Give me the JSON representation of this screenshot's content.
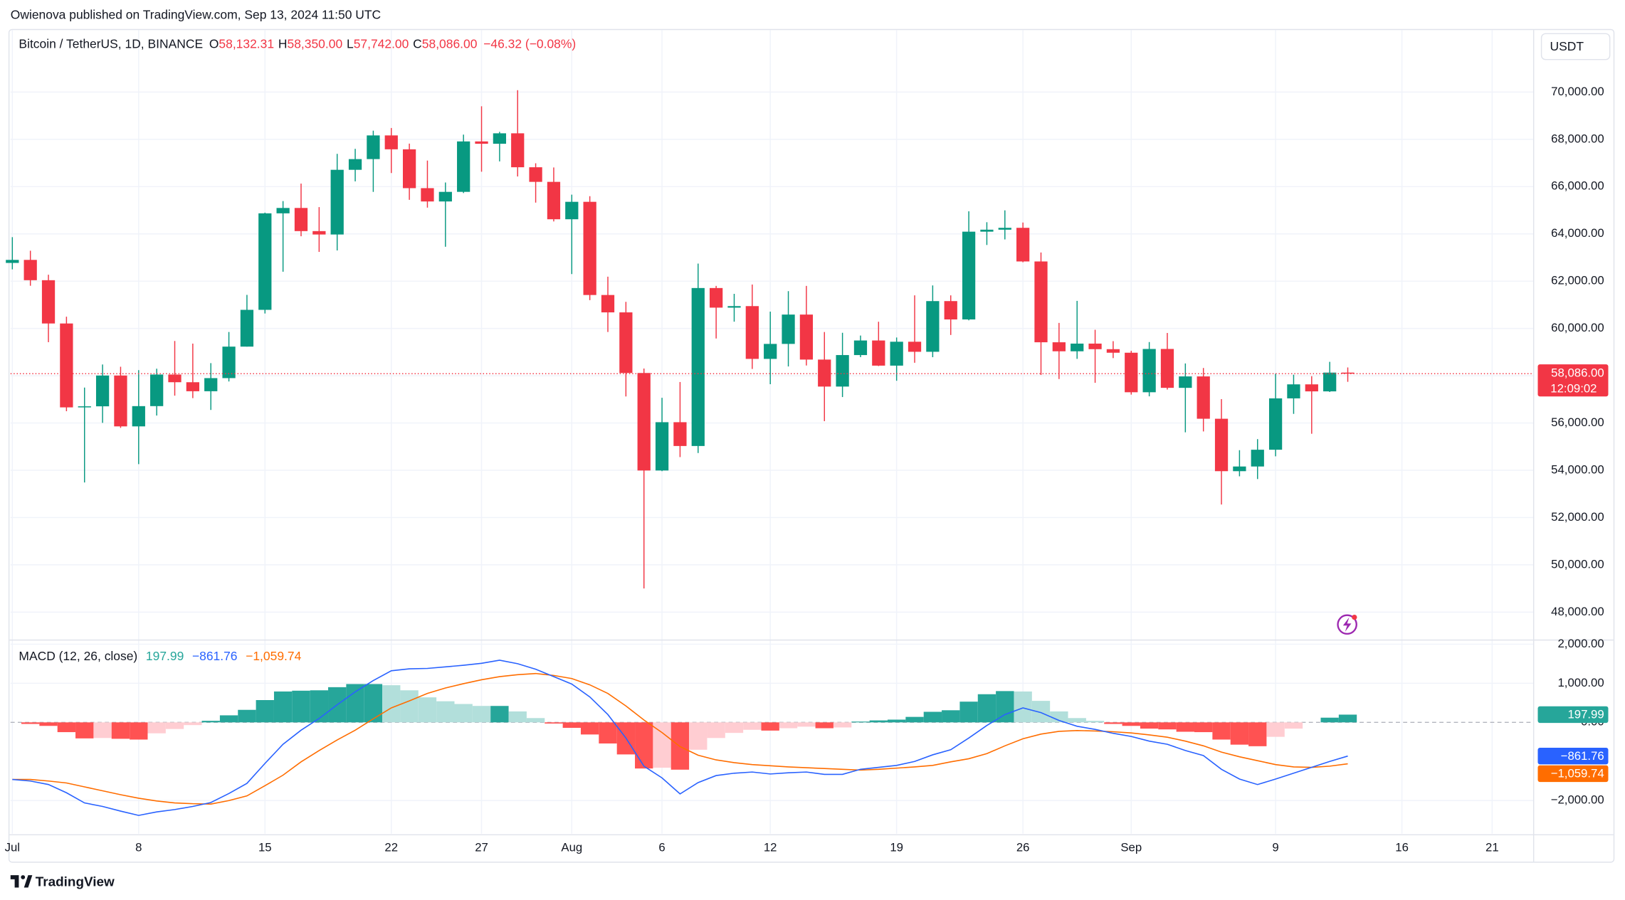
{
  "header": {
    "byline": "Owienova published on TradingView.com, Sep 13, 2024 11:50 UTC",
    "currency": "USDT",
    "brand": "TradingView"
  },
  "chart_data": [
    {
      "type": "candlestick",
      "title": "Bitcoin / TetherUS, 1D, BINANCE",
      "legend": [
        {
          "key": "O",
          "text": "58,132.31"
        },
        {
          "key": "H",
          "text": "58,350.00"
        },
        {
          "key": "L",
          "text": "57,742.00"
        },
        {
          "key": "C",
          "text": "58,086.00"
        }
      ],
      "change": "−46.32 (−0.08%)",
      "open": [
        62772,
        62900,
        62041,
        60210,
        56661,
        56706,
        58009,
        55857,
        56714,
        58050,
        57725,
        57344,
        57899,
        59231,
        60787,
        64870,
        65097,
        64118,
        63974,
        66711,
        67164,
        68166,
        67578,
        65935,
        65372,
        65778,
        67912,
        67813,
        68255,
        66819,
        66201,
        64619,
        65357,
        61415,
        60680,
        58116,
        53991,
        56034,
        55027,
        61710,
        60880,
        60945,
        58712,
        59346,
        60587,
        58683,
        57541,
        58874,
        59491,
        58427,
        59438,
        59013,
        61157,
        60381,
        64094,
        64178,
        64257,
        62834,
        59415,
        59034,
        59359,
        59123,
        58973,
        57301,
        59132,
        57487,
        57970,
        56180,
        53962,
        54160,
        54869,
        57042,
        57635,
        57338,
        58132.31
      ],
      "high": [
        63862,
        63288,
        62273,
        60498,
        57498,
        58475,
        58380,
        58236,
        58297,
        59470,
        59359,
        58533,
        59850,
        61420,
        64900,
        65388,
        66128,
        65133,
        67386,
        67598,
        68367,
        68480,
        67819,
        67102,
        66175,
        68200,
        69399,
        68318,
        70079,
        66987,
        66810,
        65660,
        65596,
        62190,
        61124,
        58305,
        57066,
        57734,
        62745,
        61800,
        61464,
        61858,
        60711,
        61578,
        61800,
        59849,
        59817,
        59700,
        60284,
        59617,
        61400,
        61820,
        61400,
        64955,
        64494,
        64996,
        64481,
        63212,
        60234,
        61166,
        59944,
        59462,
        59054,
        59425,
        59809,
        58519,
        58327,
        57008,
        54850,
        55318,
        58088,
        58044,
        57981,
        58588,
        58350
      ],
      "low": [
        62500,
        61806,
        59419,
        56500,
        53485,
        56006,
        55794,
        54260,
        56316,
        57157,
        57052,
        56552,
        57757,
        59230,
        60633,
        62400,
        63900,
        63238,
        63300,
        66222,
        65777,
        66574,
        65441,
        65111,
        63456,
        65728,
        66630,
        67067,
        66429,
        65323,
        64527,
        62300,
        61198,
        59850,
        57122,
        49000,
        53963,
        54558,
        54730,
        59575,
        60287,
        58286,
        57642,
        58392,
        58433,
        56078,
        57098,
        58785,
        58408,
        57787,
        58548,
        58784,
        59724,
        60345,
        63531,
        63766,
        62800,
        58034,
        57860,
        58713,
        57700,
        58745,
        57201,
        57128,
        57415,
        55606,
        55643,
        52550,
        53745,
        53629,
        54591,
        56386,
        55545,
        57311,
        57742
      ],
      "close": [
        62900,
        62041,
        60210,
        56661,
        56706,
        58009,
        55857,
        56714,
        58050,
        57725,
        57344,
        57899,
        59231,
        60787,
        64870,
        65097,
        64118,
        63974,
        66711,
        67164,
        68166,
        67578,
        65935,
        65372,
        65778,
        67912,
        67813,
        68255,
        66819,
        66201,
        64619,
        65357,
        61415,
        60680,
        58116,
        53991,
        56034,
        55027,
        61710,
        60880,
        60945,
        58712,
        59346,
        60587,
        58683,
        57541,
        58874,
        59491,
        58427,
        59438,
        59013,
        61157,
        60381,
        64094,
        64178,
        64257,
        62834,
        59415,
        59034,
        59359,
        59123,
        58973,
        57301,
        59132,
        57487,
        57970,
        56180,
        53962,
        54160,
        54869,
        57042,
        57635,
        57338,
        58132,
        58086
      ],
      "last_price_label": "58,086.00",
      "countdown": "12:09:02",
      "up_color": "#089981",
      "down_color": "#f23645",
      "xlim": [
        -0.1,
        84.3
      ],
      "xticks": [
        {
          "value": 0,
          "label": "Jul"
        },
        {
          "value": 7,
          "label": "8"
        },
        {
          "value": 14,
          "label": "15"
        },
        {
          "value": 21,
          "label": "22"
        },
        {
          "value": 26,
          "label": "27"
        },
        {
          "value": 31,
          "label": "Aug"
        },
        {
          "value": 36,
          "label": "6"
        },
        {
          "value": 42,
          "label": "12"
        },
        {
          "value": 49,
          "label": "19"
        },
        {
          "value": 56,
          "label": "26"
        },
        {
          "value": 62,
          "label": "Sep"
        },
        {
          "value": 70,
          "label": "9"
        },
        {
          "value": 77,
          "label": "16"
        },
        {
          "value": 82,
          "label": "21"
        }
      ],
      "ylim": [
        46862,
        72624
      ],
      "yticks": [
        {
          "value": 48000,
          "label": "48,000.00"
        },
        {
          "value": 50000,
          "label": "50,000.00"
        },
        {
          "value": 52000,
          "label": "52,000.00"
        },
        {
          "value": 54000,
          "label": "54,000.00"
        },
        {
          "value": 56000,
          "label": "56,000.00"
        },
        {
          "value": 58000,
          "label": "58,000.00"
        },
        {
          "value": 60000,
          "label": "60,000.00"
        },
        {
          "value": 62000,
          "label": "62,000.00"
        },
        {
          "value": 64000,
          "label": "64,000.00"
        },
        {
          "value": 66000,
          "label": "66,000.00"
        },
        {
          "value": 68000,
          "label": "68,000.00"
        },
        {
          "value": 70000,
          "label": "70,000.00"
        }
      ],
      "grid": true
    },
    {
      "type": "macd",
      "title": "MACD (12, 26, close)",
      "histogram": {
        "values": [
          0,
          -40,
          -90,
          -250,
          -410,
          -400,
          -420,
          -440,
          -280,
          -170,
          -70,
          40,
          180,
          320,
          570,
          790,
          810,
          820,
          900,
          980,
          980,
          950,
          820,
          640,
          540,
          470,
          420,
          420,
          280,
          110,
          -30,
          -140,
          -310,
          -540,
          -820,
          -1180,
          -1160,
          -1210,
          -700,
          -400,
          -270,
          -190,
          -210,
          -150,
          -110,
          -150,
          -130,
          20,
          50,
          70,
          140,
          270,
          310,
          530,
          720,
          800,
          790,
          550,
          280,
          110,
          40,
          -40,
          -90,
          -160,
          -180,
          -240,
          -250,
          -440,
          -570,
          -610,
          -370,
          -160,
          0,
          120,
          197.99
        ],
        "last_label": "197.99",
        "colors": [
          "#26a69a",
          "#b2dfdb",
          "#ffcdd2",
          "#ff5252"
        ]
      },
      "macd": {
        "values": [
          -1460,
          -1500,
          -1590,
          -1800,
          -2060,
          -2150,
          -2270,
          -2380,
          -2290,
          -2230,
          -2150,
          -2050,
          -1820,
          -1560,
          -1050,
          -560,
          -200,
          100,
          450,
          780,
          1070,
          1320,
          1370,
          1380,
          1420,
          1460,
          1510,
          1590,
          1500,
          1360,
          1170,
          980,
          650,
          200,
          -400,
          -1120,
          -1420,
          -1830,
          -1540,
          -1360,
          -1300,
          -1270,
          -1320,
          -1290,
          -1270,
          -1330,
          -1330,
          -1200,
          -1150,
          -1100,
          -1000,
          -830,
          -700,
          -400,
          -80,
          200,
          370,
          250,
          50,
          -100,
          -180,
          -280,
          -360,
          -480,
          -560,
          -720,
          -850,
          -1200,
          -1450,
          -1590,
          -1450,
          -1300,
          -1150,
          -1000,
          -861.76
        ],
        "last_label": "−861.76",
        "color": "#2962ff"
      },
      "signal": {
        "values": [
          -1460,
          -1460,
          -1500,
          -1550,
          -1650,
          -1750,
          -1850,
          -1940,
          -2010,
          -2060,
          -2080,
          -2090,
          -2000,
          -1880,
          -1620,
          -1350,
          -1010,
          -720,
          -450,
          -200,
          90,
          370,
          550,
          740,
          880,
          990,
          1090,
          1170,
          1220,
          1250,
          1200,
          1120,
          960,
          740,
          420,
          60,
          -260,
          -620,
          -840,
          -960,
          -1030,
          -1080,
          -1110,
          -1140,
          -1160,
          -1180,
          -1200,
          -1220,
          -1200,
          -1170,
          -1140,
          -1100,
          -1010,
          -930,
          -800,
          -600,
          -420,
          -300,
          -230,
          -210,
          -220,
          -240,
          -270,
          -320,
          -380,
          -480,
          -600,
          -760,
          -880,
          -980,
          -1080,
          -1140,
          -1150,
          -1120,
          -1059.74
        ],
        "last_label": "−1,059.74",
        "color": "#ff6d00"
      },
      "ylim": [
        -2848,
        2079
      ],
      "yticks": [
        {
          "value": -2000,
          "label": "−2,000.00"
        },
        {
          "value": 0,
          "label": "0.00"
        },
        {
          "value": 1000,
          "label": "1,000.00"
        },
        {
          "value": 2000,
          "label": "2,000.00"
        }
      ]
    }
  ]
}
